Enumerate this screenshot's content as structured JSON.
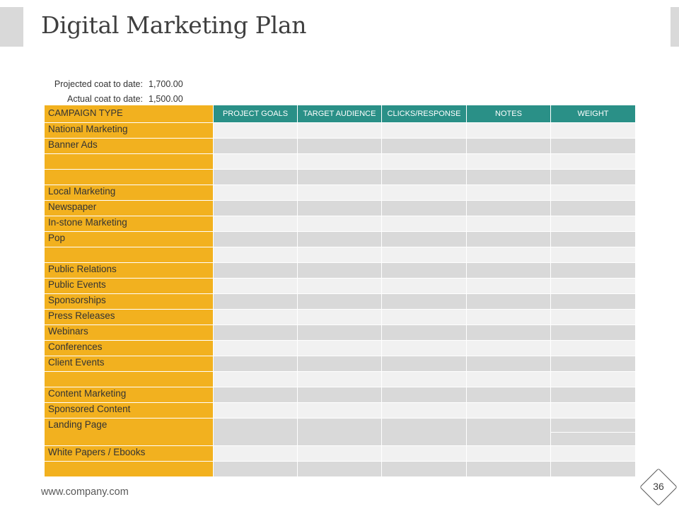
{
  "slide": {
    "title": "Digital Marketing Plan",
    "footer_url": "www.company.com",
    "page_number": "36"
  },
  "costs": {
    "projected_label": "Projected coat to date:",
    "projected_value": "1,700.00",
    "actual_label": "Actual coat to date:",
    "actual_value": "1,500.00"
  },
  "table": {
    "first_header": "CAMPAIGN TYPE",
    "headers": [
      "PROJECT GOALS",
      "TARGET AUDIENCE",
      "CLICKS/RESPONSE",
      "NOTES",
      "WEIGHT"
    ],
    "rows": [
      "National Marketing",
      "Banner Ads",
      "",
      "",
      "Local Marketing",
      "Newspaper",
      "In-stone Marketing",
      "Pop",
      "",
      "Public Relations",
      "Public Events",
      "Sponsorships",
      "Press Releases",
      "Webinars",
      "Conferences",
      "Client Events",
      "",
      "Content Marketing",
      "Sponsored Content",
      "Landing Page",
      "White Papers / Ebooks",
      ""
    ]
  },
  "colors": {
    "label_column": "#f2b11f",
    "header_teal": "#2a9087",
    "row_light": "#f1f1f1",
    "row_dark": "#d9d9d9"
  }
}
